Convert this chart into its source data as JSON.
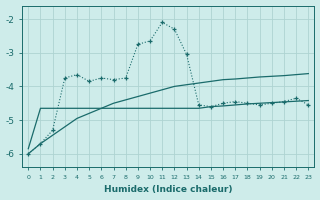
{
  "xlabel": "Humidex (Indice chaleur)",
  "background_color": "#ceecea",
  "grid_color": "#aed4d2",
  "line_color": "#1a6b6b",
  "xlim": [
    -0.5,
    23.5
  ],
  "ylim": [
    -6.4,
    -1.6
  ],
  "yticks": [
    -6,
    -5,
    -4,
    -3,
    -2
  ],
  "xticks": [
    0,
    1,
    2,
    3,
    4,
    5,
    6,
    7,
    8,
    9,
    10,
    11,
    12,
    13,
    14,
    15,
    16,
    17,
    18,
    19,
    20,
    21,
    22,
    23
  ],
  "curve1_x": [
    0,
    1,
    2,
    3,
    4,
    5,
    6,
    7,
    8,
    9,
    10,
    11,
    12,
    13,
    14,
    15,
    16,
    17,
    18,
    19,
    20,
    21,
    22,
    23
  ],
  "curve1_y": [
    -6.0,
    -5.7,
    -5.3,
    -3.75,
    -3.65,
    -3.85,
    -3.75,
    -3.8,
    -3.75,
    -2.75,
    -2.65,
    -2.1,
    -2.3,
    -3.05,
    -4.55,
    -4.6,
    -4.5,
    -4.45,
    -4.5,
    -4.55,
    -4.5,
    -4.45,
    -4.35,
    -4.55
  ],
  "curve2_x": [
    0,
    1,
    2,
    3,
    4,
    5,
    6,
    7,
    8,
    9,
    10,
    11,
    12,
    13,
    14,
    15,
    16,
    17,
    18,
    19,
    20,
    21,
    22,
    23
  ],
  "curve2_y": [
    -5.85,
    -4.65,
    -4.65,
    -4.65,
    -4.65,
    -4.65,
    -4.65,
    -4.65,
    -4.65,
    -4.65,
    -4.65,
    -4.65,
    -4.65,
    -4.65,
    -4.65,
    -4.6,
    -4.58,
    -4.55,
    -4.52,
    -4.5,
    -4.48,
    -4.46,
    -4.44,
    -4.42
  ],
  "curve3_x": [
    0,
    1,
    2,
    3,
    4,
    5,
    6,
    7,
    8,
    9,
    10,
    11,
    12,
    13,
    14,
    15,
    16,
    17,
    18,
    19,
    20,
    21,
    22,
    23
  ],
  "curve3_y": [
    -6.0,
    -5.7,
    -5.45,
    -5.2,
    -4.95,
    -4.8,
    -4.65,
    -4.5,
    -4.4,
    -4.3,
    -4.2,
    -4.1,
    -4.0,
    -3.95,
    -3.9,
    -3.85,
    -3.8,
    -3.78,
    -3.75,
    -3.72,
    -3.7,
    -3.68,
    -3.65,
    -3.62
  ]
}
